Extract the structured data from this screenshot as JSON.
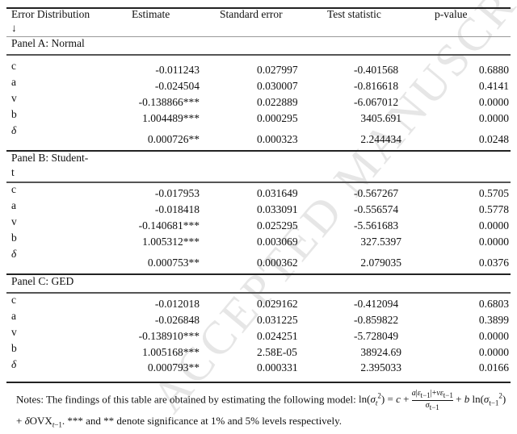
{
  "header": {
    "col0": "Error Distribution",
    "col0_arrow": "↓",
    "col1": "Estimate",
    "col2": "Standard error",
    "col3": "Test statistic",
    "col4": "p-value"
  },
  "panels": [
    {
      "title": "Panel A: Normal",
      "rows": [
        {
          "param": "c",
          "estimate": "-0.011243",
          "se": "0.027997",
          "test": "-0.401568",
          "p": "0.6880"
        },
        {
          "param": "a",
          "estimate": "-0.024504",
          "se": "0.030007",
          "test": "-0.816618",
          "p": "0.4141"
        },
        {
          "param": "v",
          "estimate": "-0.138866***",
          "se": "0.022889",
          "test": "-6.067012",
          "p": "0.0000"
        },
        {
          "param": "b",
          "estimate": "1.004489***",
          "se": "0.000295",
          "test": "3405.691",
          "p": "0.0000"
        },
        {
          "param": "δ",
          "estimate": "0.000726**",
          "se": "0.000323",
          "test": "2.244434",
          "p": "0.0248"
        }
      ]
    },
    {
      "title": "Panel B: Student-",
      "title_line2": "t",
      "rows": [
        {
          "param": "c",
          "estimate": "-0.017953",
          "se": "0.031649",
          "test": "-0.567267",
          "p": "0.5705"
        },
        {
          "param": "a",
          "estimate": "-0.018418",
          "se": "0.033091",
          "test": "-0.556574",
          "p": "0.5778"
        },
        {
          "param": "v",
          "estimate": "-0.140681***",
          "se": "0.025295",
          "test": "-5.561683",
          "p": "0.0000"
        },
        {
          "param": "b",
          "estimate": "1.005312***",
          "se": "0.003069",
          "test": "327.5397",
          "p": "0.0000"
        },
        {
          "param": "δ",
          "estimate": "0.000753**",
          "se": "0.000362",
          "test": "2.079035",
          "p": "0.0376"
        }
      ]
    },
    {
      "title": "Panel C: GED",
      "rows": [
        {
          "param": "c",
          "estimate": "-0.012018",
          "se": "0.029162",
          "test": "-0.412094",
          "p": "0.6803"
        },
        {
          "param": "a",
          "estimate": "-0.026848",
          "se": "0.031225",
          "test": "-0.859822",
          "p": "0.3899"
        },
        {
          "param": "v",
          "estimate": "-0.138910***",
          "se": "0.024251",
          "test": "-5.728049",
          "p": "0.0000"
        },
        {
          "param": "b",
          "estimate": "1.005168***",
          "se": "2.58E-05",
          "test": "38924.69",
          "p": "0.0000"
        },
        {
          "param": "δ",
          "estimate": "0.000793**",
          "se": "0.000331",
          "test": "2.395033",
          "p": "0.0166"
        }
      ]
    }
  ],
  "notes": {
    "prefix": "Notes: The findings of this table are obtained by estimating the following model: ",
    "suffix": ". *** and ** denote significance at 1% and 5% levels respectively."
  },
  "watermark": "ACCEPTED MANUSCRIPT"
}
